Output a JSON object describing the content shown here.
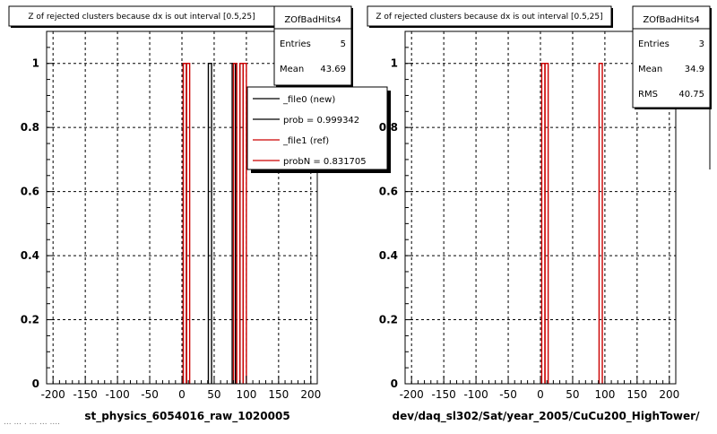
{
  "footer_left": "... ... . ... ... ....",
  "chart_data": [
    {
      "type": "histogram",
      "title": "Z of rejected clusters  because dx is out interval [0.5,25]",
      "xlabel": "st_physics_6054016_raw_1020005",
      "ylabel": "",
      "xlim": [
        -210,
        210
      ],
      "ylim": [
        0,
        1.1
      ],
      "xticks": [
        "-200",
        "-150",
        "-100",
        "-50",
        "0",
        "50",
        "100",
        "150",
        "200"
      ],
      "yticks": [
        "0",
        "0.2",
        "0.4",
        "0.6",
        "0.8",
        "1"
      ],
      "grid": true,
      "stats": {
        "name": "ZOfBadHits4",
        "rows": [
          {
            "label": "Entries",
            "value": "5"
          },
          {
            "label": "Mean",
            "value": "43.69"
          }
        ]
      },
      "legend": {
        "placement": "top-right",
        "entries": [
          {
            "label": "_file0 (new)",
            "color": "#000000"
          },
          {
            "label": "prob = 0.999342",
            "color": "#000000"
          },
          {
            "label": "_file1 (ref)",
            "color": "#cc0000"
          },
          {
            "label": "probN = 0.831705",
            "color": "#cc0000"
          }
        ]
      },
      "series": [
        {
          "name": "_file0 (new)",
          "color": "#000000",
          "bins": [
            [
              2,
              7
            ],
            [
              41,
              46
            ],
            [
              78,
              83
            ],
            [
              90,
              95
            ]
          ],
          "values": [
            1,
            1,
            1,
            1
          ]
        },
        {
          "name": "_file1 (ref)",
          "color": "#cc0000",
          "bins": [
            [
              2,
              7
            ],
            [
              7,
              12
            ],
            [
              80,
              85
            ],
            [
              90,
              95
            ],
            [
              95,
              100
            ]
          ],
          "values": [
            1,
            1,
            1,
            1,
            1
          ]
        }
      ]
    },
    {
      "type": "histogram",
      "title": "Z of rejected clusters  because dx is out interval [0.5,25]",
      "xlabel": "dev/daq_sl302/Sat/year_2005/CuCu200_HighTower/",
      "ylabel": "",
      "xlim": [
        -210,
        210
      ],
      "ylim": [
        0,
        1.1
      ],
      "xticks": [
        "-200",
        "-150",
        "-100",
        "-50",
        "0",
        "50",
        "100",
        "150",
        "200"
      ],
      "yticks": [
        "0",
        "0.2",
        "0.4",
        "0.6",
        "0.8",
        "1"
      ],
      "grid": true,
      "stats": {
        "name": "ZOfBadHits4",
        "rows": [
          {
            "label": "Entries",
            "value": "3"
          },
          {
            "label": "Mean",
            "value": "34.9"
          },
          {
            "label": "RMS",
            "value": "40.75"
          }
        ]
      },
      "series": [
        {
          "name": "",
          "color": "#cc0000",
          "bins": [
            [
              2,
              7
            ],
            [
              7,
              12
            ],
            [
              91,
              96
            ]
          ],
          "values": [
            1,
            1,
            1
          ]
        }
      ]
    }
  ]
}
